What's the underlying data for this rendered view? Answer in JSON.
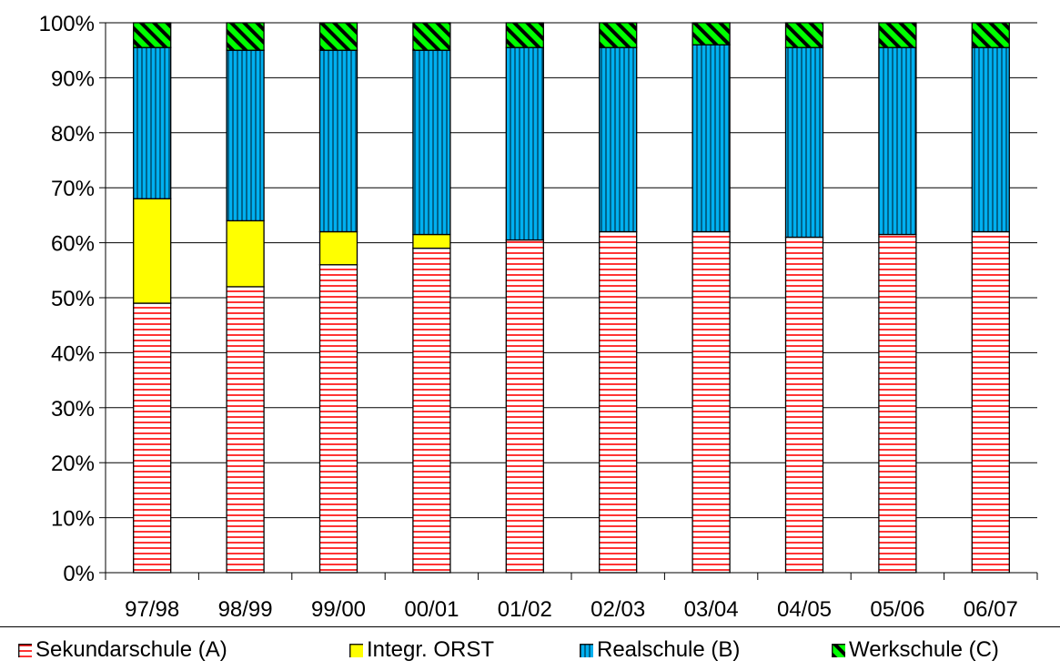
{
  "chart_data": {
    "type": "bar",
    "stacked": true,
    "percent": true,
    "categories": [
      "97/98",
      "98/99",
      "99/00",
      "00/01",
      "01/02",
      "02/03",
      "03/04",
      "04/05",
      "05/06",
      "06/07"
    ],
    "series": [
      {
        "name": "Sekundarschule (A)",
        "color": "#ff0000",
        "pattern": "horizontal-lines",
        "values": [
          49,
          52,
          56,
          59,
          60.5,
          62,
          62,
          61,
          61.5,
          62
        ]
      },
      {
        "name": "Integr. ORST",
        "color": "#ffff00",
        "pattern": "solid",
        "values": [
          19,
          12,
          6,
          2.5,
          0,
          0,
          0,
          0,
          0,
          0
        ]
      },
      {
        "name": "Realschule (B)",
        "color": "#00b0f0",
        "pattern": "vertical-lines",
        "values": [
          27.5,
          31,
          33,
          33.5,
          35,
          33.5,
          34,
          34.5,
          34,
          33.5
        ]
      },
      {
        "name": "Werkschule (C)",
        "color": "#00ff00",
        "pattern": "diagonal-lines",
        "values": [
          4.5,
          5,
          5,
          5,
          4.5,
          4.5,
          4,
          4.5,
          4.5,
          4.5
        ]
      }
    ],
    "y_ticks": [
      "0%",
      "10%",
      "20%",
      "30%",
      "40%",
      "50%",
      "60%",
      "70%",
      "80%",
      "90%",
      "100%"
    ],
    "ylim": [
      0,
      100
    ],
    "title": "",
    "xlabel": "",
    "ylabel": "",
    "grid": "horizontal",
    "legend_position": "bottom"
  }
}
